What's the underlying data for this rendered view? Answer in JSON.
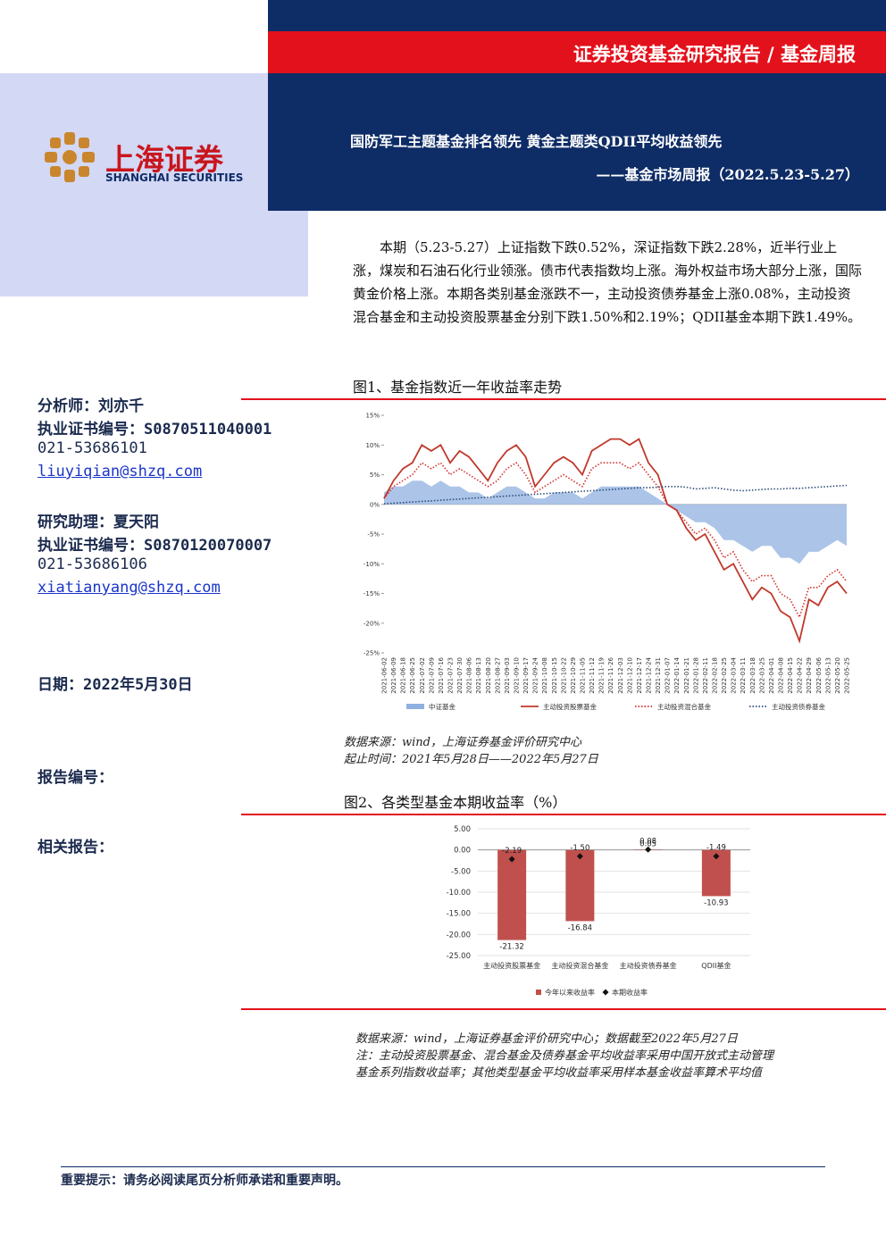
{
  "header": {
    "banner": "证券投资基金研究报告 / 基金周报",
    "title": "国防军工主题基金排名领先 黄金主题类QDII平均收益领先",
    "subtitle": "——基金市场周报（2022.5.23-5.27）"
  },
  "logo": {
    "name": "上海证券",
    "english": "SHANGHAI SECURITIES"
  },
  "sidebar": {
    "analyst": "分析师：刘亦千",
    "analyst_cert": "执业证书编号：S0870511040001",
    "analyst_phone": "021-53686101",
    "analyst_email": "liuyiqian@shzq.com",
    "assistant": "研究助理：夏天阳",
    "assistant_cert": "执业证书编号：S0870120070007",
    "assistant_phone": "021-53686106",
    "assistant_email": "xiatianyang@shzq.com",
    "date": "日期：2022年5月30日",
    "report_no": "报告编号：",
    "related": "相关报告："
  },
  "summary": "本期（5.23-5.27）上证指数下跌0.52%，深证指数下跌2.28%，近半行业上涨，煤炭和石油石化行业领涨。债市代表指数均上涨。海外权益市场大部分上涨，国际黄金价格上涨。本期各类别基金涨跌不一，主动投资债券基金上涨0.08%，主动投资混合基金和主动投资股票基金分别下跌1.50%和2.19%；QDII基金本期下跌1.49%。",
  "chart_data": [
    {
      "type": "line",
      "title": "图1、基金指数近一年收益率走势",
      "categories": [
        "2021-06-02",
        "2021-06-09",
        "2021-06-18",
        "2021-06-25",
        "2021-07-02",
        "2021-07-09",
        "2021-07-16",
        "2021-07-23",
        "2021-07-30",
        "2021-08-06",
        "2021-08-13",
        "2021-08-20",
        "2021-08-27",
        "2021-09-03",
        "2021-09-10",
        "2021-09-17",
        "2021-09-24",
        "2021-10-08",
        "2021-10-15",
        "2021-10-22",
        "2021-10-29",
        "2021-11-05",
        "2021-11-12",
        "2021-11-19",
        "2021-11-26",
        "2021-12-03",
        "2021-12-10",
        "2021-12-17",
        "2021-12-24",
        "2021-12-31",
        "2022-01-07",
        "2022-01-14",
        "2022-01-21",
        "2022-01-28",
        "2022-02-11",
        "2022-02-18",
        "2022-02-25",
        "2022-03-04",
        "2022-03-11",
        "2022-03-18",
        "2022-03-25",
        "2022-04-01",
        "2022-04-08",
        "2022-04-15",
        "2022-04-22",
        "2022-04-29",
        "2022-05-06",
        "2022-05-13",
        "2022-05-20",
        "2022-05-25"
      ],
      "series": [
        {
          "name": "中证基金",
          "color": "#8fb0e0",
          "style": "area",
          "values": [
            2,
            3,
            3,
            4,
            4,
            3,
            4,
            3,
            3,
            2,
            2,
            1,
            2,
            3,
            3,
            2,
            1,
            1,
            2,
            2,
            2,
            1,
            2,
            3,
            3,
            3,
            3,
            3,
            2,
            1,
            0,
            -1,
            -2,
            -3,
            -3,
            -4,
            -6,
            -6,
            -7,
            -8,
            -7,
            -7,
            -9,
            -9,
            -10,
            -8,
            -8,
            -7,
            -6,
            -7
          ]
        },
        {
          "name": "主动投资股票基金",
          "color": "#c0392b",
          "style": "solid",
          "values": [
            1,
            4,
            6,
            7,
            10,
            9,
            10,
            7,
            9,
            8,
            6,
            4,
            7,
            9,
            10,
            8,
            3,
            5,
            7,
            8,
            7,
            5,
            9,
            10,
            11,
            11,
            10,
            11,
            7,
            5,
            0,
            -1,
            -4,
            -6,
            -5,
            -8,
            -11,
            -10,
            -13,
            -16,
            -14,
            -15,
            -18,
            -19,
            -23,
            -16,
            -17,
            -14,
            -13,
            -15
          ]
        },
        {
          "name": "主动投资混合基金",
          "color": "#d0312d",
          "style": "dotted",
          "values": [
            1,
            3,
            4,
            5,
            7,
            6,
            7,
            5,
            6,
            5,
            4,
            3,
            4,
            6,
            7,
            5,
            2,
            3,
            4,
            5,
            4,
            3,
            6,
            7,
            7,
            7,
            6,
            7,
            5,
            3,
            0,
            -1,
            -3,
            -5,
            -4,
            -6,
            -9,
            -8,
            -11,
            -13,
            -12,
            -12,
            -15,
            -16,
            -19,
            -14,
            -14,
            -12,
            -11,
            -13
          ]
        },
        {
          "name": "主动投资债券基金",
          "color": "#2e4d7b",
          "style": "dotted",
          "values": [
            0.1,
            0.2,
            0.3,
            0.4,
            0.5,
            0.6,
            0.7,
            0.8,
            0.9,
            1.0,
            1.1,
            1.2,
            1.3,
            1.4,
            1.5,
            1.6,
            1.7,
            1.8,
            1.9,
            2.0,
            2.1,
            2.2,
            2.3,
            2.4,
            2.5,
            2.6,
            2.7,
            2.8,
            2.8,
            2.9,
            3.0,
            3.0,
            2.9,
            2.6,
            2.7,
            2.8,
            2.6,
            2.4,
            2.3,
            2.4,
            2.5,
            2.6,
            2.6,
            2.7,
            2.7,
            2.8,
            2.9,
            3.0,
            3.1,
            3.2
          ]
        }
      ],
      "ylim": [
        -25,
        15
      ],
      "yticks": [
        {
          "value": 15,
          "label": "15%"
        },
        {
          "value": 10,
          "label": "10%"
        },
        {
          "value": 5,
          "label": "5%"
        },
        {
          "value": 0,
          "label": "0%"
        },
        {
          "value": -5,
          "label": "-5%"
        },
        {
          "value": -10,
          "label": "-10%"
        },
        {
          "value": -15,
          "label": "-15%"
        },
        {
          "value": -20,
          "label": "-20%"
        },
        {
          "value": -25,
          "label": "-25%"
        }
      ],
      "notes": [
        "数据来源：wind，上海证券基金评价研究中心",
        "起止时间：2021年5月28日——2022年5月27日"
      ]
    },
    {
      "type": "bar",
      "title": "图2、各类型基金本期收益率（%）",
      "categories": [
        "主动投资股票基金",
        "主动投资混合基金",
        "主动投资债券基金",
        "QDII基金"
      ],
      "series": [
        {
          "name": "今年以来收益率",
          "color": "#c0504d",
          "style": "bar",
          "values": [
            -21.32,
            -16.84,
            0.05,
            -10.93
          ],
          "value_labels": [
            "-21.32",
            "-16.84",
            "0.05",
            "-10.93"
          ]
        },
        {
          "name": "本期收益率",
          "color": "#111111",
          "style": "diamond",
          "values": [
            -2.19,
            -1.5,
            0.08,
            -1.49
          ],
          "value_labels": [
            "-2.19",
            "-1.50",
            "0.08",
            "-1.49"
          ]
        }
      ],
      "ylim": [
        -25,
        5
      ],
      "yticks": [
        {
          "value": 5,
          "label": "5.00"
        },
        {
          "value": 0,
          "label": "0.00"
        },
        {
          "value": -5,
          "label": "-5.00"
        },
        {
          "value": -10,
          "label": "-10.00"
        },
        {
          "value": -15,
          "label": "-15.00"
        },
        {
          "value": -20,
          "label": "-20.00"
        },
        {
          "value": -25,
          "label": "-25.00"
        }
      ],
      "notes": [
        "数据来源：wind，上海证券基金评价研究中心；数据截至2022年5月27日",
        "注：主动投资股票基金、混合基金及债券基金平均收益率采用中国开放式主动管理",
        "基金系列指数收益率；其他类型基金平均收益率采用样本基金收益率算术平均值"
      ]
    }
  ],
  "footer": "重要提示：请务必阅读尾页分析师承诺和重要声明。"
}
